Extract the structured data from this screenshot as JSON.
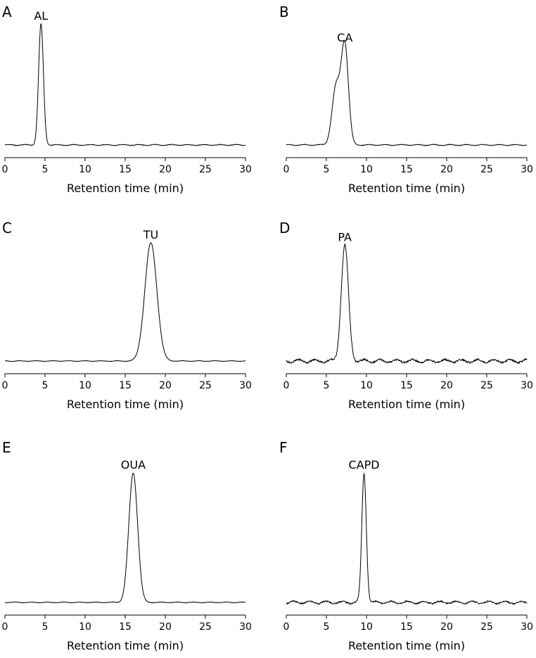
{
  "figure": {
    "panels": [
      {
        "letter": "A",
        "peak_label": "AL"
      },
      {
        "letter": "B",
        "peak_label": "CA"
      },
      {
        "letter": "C",
        "peak_label": "TU"
      },
      {
        "letter": "D",
        "peak_label": "PA"
      },
      {
        "letter": "E",
        "peak_label": "OUA"
      },
      {
        "letter": "F",
        "peak_label": "CAPD"
      }
    ]
  },
  "chart_data": [
    {
      "panel": "A",
      "type": "line",
      "xlabel": "Retention time (min)",
      "ylabel": "",
      "xlim": [
        0,
        30
      ],
      "xticks": [
        0,
        5,
        10,
        15,
        20,
        25,
        30
      ],
      "ylim": [
        0,
        1.1
      ],
      "grid": false,
      "peaks": [
        {
          "label": "AL",
          "center": 4.5,
          "height": 0.95,
          "sigma": 0.3
        }
      ],
      "baseline_noise": 0.006
    },
    {
      "panel": "B",
      "type": "line",
      "xlabel": "Retention time (min)",
      "ylabel": "",
      "xlim": [
        0,
        30
      ],
      "xticks": [
        0,
        5,
        10,
        15,
        20,
        25,
        30
      ],
      "ylim": [
        0,
        1.1
      ],
      "grid": false,
      "peaks": [
        {
          "label": "CA",
          "center": 7.3,
          "height": 0.78,
          "sigma": 0.45
        },
        {
          "label": "",
          "center": 6.2,
          "height": 0.45,
          "sigma": 0.5
        }
      ],
      "baseline_noise": 0.006
    },
    {
      "panel": "C",
      "type": "line",
      "xlabel": "Retention time (min)",
      "ylabel": "",
      "xlim": [
        0,
        30
      ],
      "xticks": [
        0,
        5,
        10,
        15,
        20,
        25,
        30
      ],
      "ylim": [
        0,
        1.1
      ],
      "grid": false,
      "peaks": [
        {
          "label": "TU",
          "center": 18.2,
          "height": 0.97,
          "sigma": 0.75
        }
      ],
      "baseline_noise": 0.004
    },
    {
      "panel": "D",
      "type": "line",
      "xlabel": "Retention time (min)",
      "ylabel": "",
      "xlim": [
        0,
        30
      ],
      "xticks": [
        0,
        5,
        10,
        15,
        20,
        25,
        30
      ],
      "ylim": [
        0,
        1.1
      ],
      "grid": false,
      "peaks": [
        {
          "label": "PA",
          "center": 7.3,
          "height": 0.95,
          "sigma": 0.45
        }
      ],
      "baseline_noise": 0.02
    },
    {
      "panel": "E",
      "type": "line",
      "xlabel": "Retention time (min)",
      "ylabel": "",
      "xlim": [
        0,
        30
      ],
      "xticks": [
        0,
        5,
        10,
        15,
        20,
        25,
        30
      ],
      "ylim": [
        0,
        1.1
      ],
      "grid": false,
      "peaks": [
        {
          "label": "OUA",
          "center": 16.0,
          "height": 1.0,
          "sigma": 0.55
        }
      ],
      "baseline_noise": 0.004
    },
    {
      "panel": "F",
      "type": "line",
      "xlabel": "Retention time (min)",
      "ylabel": "",
      "xlim": [
        0,
        30
      ],
      "xticks": [
        0,
        5,
        10,
        15,
        20,
        25,
        30
      ],
      "ylim": [
        0,
        1.1
      ],
      "grid": false,
      "peaks": [
        {
          "label": "CAPD",
          "center": 9.7,
          "height": 1.0,
          "sigma": 0.28
        }
      ],
      "baseline_noise": 0.015
    }
  ]
}
